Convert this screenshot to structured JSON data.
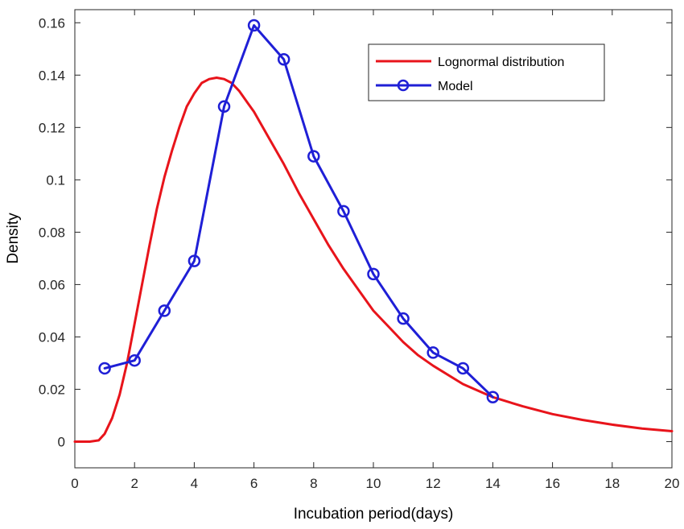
{
  "chart_data": {
    "type": "line",
    "title": "",
    "xlabel": "Incubation period(days)",
    "ylabel": "Density",
    "xlim": [
      0,
      20
    ],
    "ylim": [
      -0.01,
      0.165
    ],
    "x_ticks": [
      0,
      2,
      4,
      6,
      8,
      10,
      12,
      14,
      16,
      18,
      20
    ],
    "y_ticks": [
      0,
      0.02,
      0.04,
      0.06,
      0.08,
      0.1,
      0.12,
      0.14,
      0.16
    ],
    "x_tick_labels": [
      "0",
      "2",
      "4",
      "6",
      "8",
      "10",
      "12",
      "14",
      "16",
      "18",
      "20"
    ],
    "y_tick_labels": [
      "0",
      "0.02",
      "0.04",
      "0.06",
      "0.08",
      "0.1",
      "0.12",
      "0.14",
      "0.16"
    ],
    "grid": false,
    "legend_position": "top-right",
    "series": [
      {
        "name": "Lognormal distribution",
        "color": "#e8141b",
        "marker": "none",
        "x": [
          0,
          0.5,
          0.8,
          1,
          1.25,
          1.5,
          1.75,
          2,
          2.25,
          2.5,
          2.75,
          3,
          3.25,
          3.5,
          3.75,
          4,
          4.25,
          4.5,
          4.75,
          5,
          5.25,
          5.5,
          5.75,
          6,
          6.5,
          7,
          7.5,
          8,
          8.5,
          9,
          9.5,
          10,
          10.5,
          11,
          11.5,
          12,
          13,
          14,
          15,
          16,
          17,
          18,
          19,
          20
        ],
        "y": [
          0,
          0,
          0.0005,
          0.003,
          0.009,
          0.018,
          0.03,
          0.045,
          0.06,
          0.075,
          0.089,
          0.101,
          0.111,
          0.12,
          0.128,
          0.133,
          0.137,
          0.1385,
          0.139,
          0.1385,
          0.137,
          0.134,
          0.13,
          0.126,
          0.116,
          0.106,
          0.095,
          0.085,
          0.075,
          0.066,
          0.058,
          0.05,
          0.044,
          0.038,
          0.033,
          0.029,
          0.022,
          0.017,
          0.0135,
          0.0105,
          0.0083,
          0.0065,
          0.005,
          0.004
        ]
      },
      {
        "name": "Model",
        "color": "#1f1fd6",
        "marker": "circle",
        "x": [
          1,
          2,
          3,
          4,
          5,
          6,
          7,
          8,
          9,
          10,
          11,
          12,
          13,
          14
        ],
        "y": [
          0.028,
          0.031,
          0.05,
          0.069,
          0.128,
          0.159,
          0.146,
          0.109,
          0.088,
          0.064,
          0.047,
          0.034,
          0.028,
          0.017
        ]
      }
    ]
  }
}
